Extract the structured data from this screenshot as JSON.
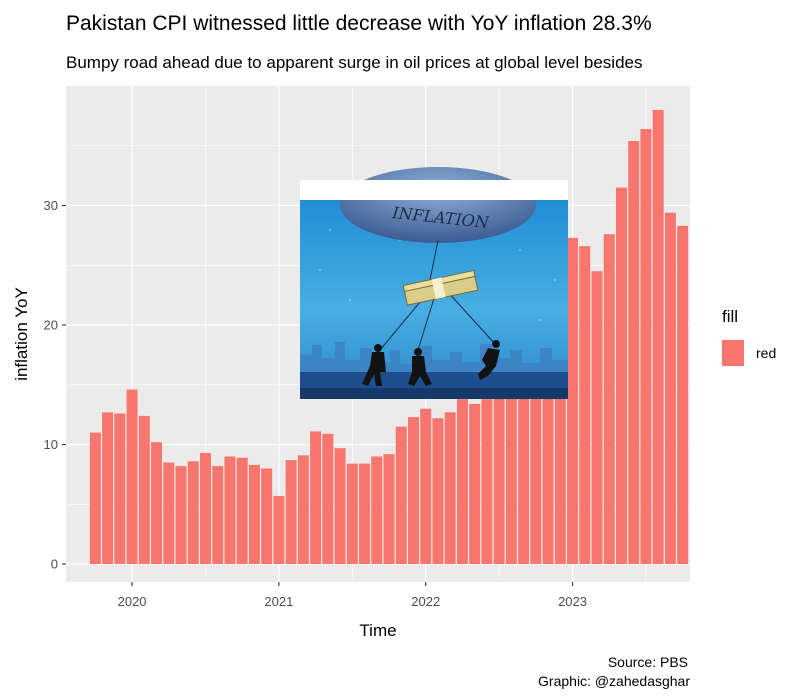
{
  "chart_data": {
    "type": "bar",
    "title": "Pakistan CPI witnessed little decrease with YoY inflation 28.3%",
    "subtitle": "Bumpy road ahead due to apparent surge in oil prices at global level  besides",
    "xlabel": "Time",
    "ylabel": "inflation YoY",
    "ylim": [
      -1.5,
      40
    ],
    "yticks": [
      0,
      10,
      20,
      30
    ],
    "xticks": [
      2020,
      2021,
      2022,
      2023
    ],
    "grid": true,
    "legend": {
      "title": "fill",
      "label": "red",
      "position": "right"
    },
    "caption": [
      "Source: PBS",
      "Graphic: @zahedasghar"
    ],
    "bar_color": "#F8766D",
    "panel_color": "#EBEBEB",
    "x_start": 2019.75,
    "x_step": 0.08333,
    "values": [
      11.0,
      12.7,
      12.6,
      14.6,
      12.4,
      10.2,
      8.5,
      8.2,
      8.6,
      9.3,
      8.2,
      9.0,
      8.9,
      8.3,
      8.0,
      5.7,
      8.7,
      9.1,
      11.1,
      10.9,
      9.7,
      8.4,
      8.4,
      9.0,
      9.2,
      11.5,
      12.3,
      13.0,
      12.2,
      12.7,
      13.8,
      13.4,
      13.8,
      14.0,
      14.2,
      16.0,
      21.3,
      23.2,
      24.5,
      27.3,
      26.6,
      24.5,
      27.6,
      31.5,
      35.4,
      36.4,
      38.0,
      29.4,
      28.3
    ],
    "image": {
      "description": "inflation balloon illustration",
      "balloon_text": "INFLATION"
    }
  }
}
